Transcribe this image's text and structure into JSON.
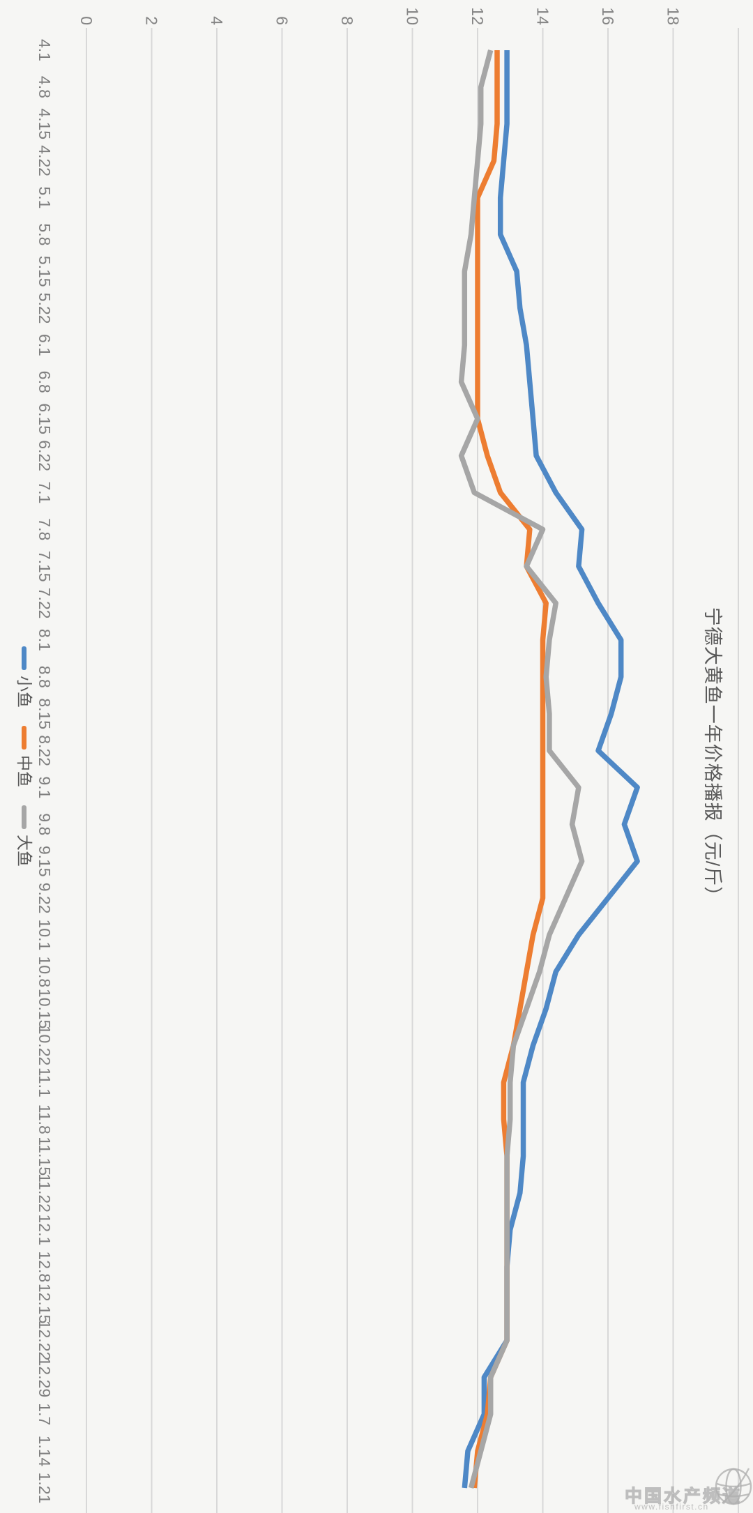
{
  "chart": {
    "title": "宁德大黄鱼一年价格播报（元/斤）"
  },
  "chart_data": {
    "type": "line",
    "title": "宁德大黄鱼一年价格播报（元/斤）",
    "orientation_note": "rendered rotated 90deg clockwise (dates run top to bottom)",
    "categories": [
      "4.1",
      "4.8",
      "4.15",
      "4.22",
      "5.1",
      "5.8",
      "5.15",
      "5.22",
      "6.1",
      "6.8",
      "6.15",
      "6.22",
      "7.1",
      "7.8",
      "7.15",
      "7.22",
      "8.1",
      "8.8",
      "8.15",
      "8.22",
      "9.1",
      "9.8",
      "9.15",
      "9.22",
      "10.1",
      "10.8",
      "10.15",
      "10.22",
      "11.1",
      "11.8",
      "11.15",
      "11.22",
      "12.1",
      "12.8",
      "12.15",
      "12.22",
      "12.29",
      "1.7",
      "1.14",
      "1.21"
    ],
    "series": [
      {
        "name": "小鱼",
        "color": "#4e88c6",
        "values": [
          12.9,
          12.9,
          12.9,
          12.8,
          12.7,
          12.7,
          13.2,
          13.3,
          13.5,
          13.6,
          13.7,
          13.8,
          14.4,
          15.2,
          15.1,
          15.7,
          16.4,
          16.4,
          16.1,
          15.7,
          16.9,
          16.5,
          16.9,
          16.0,
          15.1,
          14.4,
          14.1,
          13.7,
          13.4,
          13.4,
          13.4,
          13.3,
          13.0,
          12.9,
          12.9,
          12.9,
          12.2,
          12.2,
          11.7,
          11.6
        ]
      },
      {
        "name": "中鱼",
        "color": "#ed7d31",
        "values": [
          12.6,
          12.6,
          12.6,
          12.5,
          12.0,
          12.0,
          12.0,
          12.0,
          12.0,
          12.0,
          12.0,
          12.3,
          12.7,
          13.6,
          13.5,
          14.1,
          14.0,
          14.0,
          14.0,
          14.0,
          14.0,
          14.0,
          14.0,
          14.0,
          13.7,
          13.5,
          13.3,
          13.1,
          12.8,
          12.8,
          12.9,
          12.9,
          12.9,
          12.9,
          12.9,
          12.9,
          12.4,
          12.3,
          12.0,
          11.9
        ]
      },
      {
        "name": "大鱼",
        "color": "#a6a6a6",
        "values": [
          12.4,
          12.1,
          12.1,
          12.0,
          11.9,
          11.8,
          11.6,
          11.6,
          11.6,
          11.5,
          12.0,
          11.5,
          11.9,
          14.0,
          13.5,
          14.4,
          14.2,
          14.1,
          14.2,
          14.2,
          15.1,
          14.9,
          15.2,
          14.7,
          14.2,
          13.9,
          13.5,
          13.1,
          13.0,
          13.0,
          12.9,
          12.9,
          12.9,
          12.9,
          12.9,
          12.9,
          12.4,
          12.4,
          12.1,
          11.8
        ]
      }
    ],
    "ylabel": "元/斤",
    "ylim": [
      0,
      18
    ],
    "y_ticks": [
      0,
      2,
      4,
      6,
      8,
      10,
      12,
      14,
      16,
      18
    ],
    "grid": true,
    "legend_position": "bottom"
  },
  "watermark": {
    "name": "中国水产频道",
    "url": "www.fishfirst.cn"
  }
}
